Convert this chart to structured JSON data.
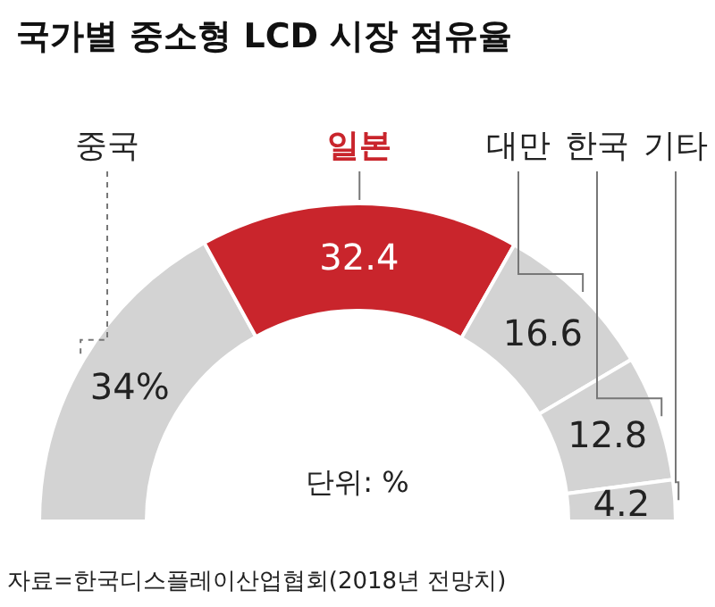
{
  "chart_data": {
    "type": "donut",
    "title": "국가별 중소형 LCD 시장 점유율",
    "categories": [
      "중국",
      "일본",
      "대만",
      "한국",
      "기타"
    ],
    "values": [
      34,
      32.4,
      16.6,
      12.8,
      4.2
    ],
    "value_labels": [
      "34%",
      "32.4",
      "16.6",
      "12.8",
      "4.2"
    ],
    "colors": [
      "#d3d3d3",
      "#c9252c",
      "#d3d3d3",
      "#d3d3d3",
      "#d3d3d3"
    ],
    "annotations": [
      "단위: %",
      "자료=한국디스플레이산업협회(2018년 전망치)"
    ],
    "legend": false
  }
}
